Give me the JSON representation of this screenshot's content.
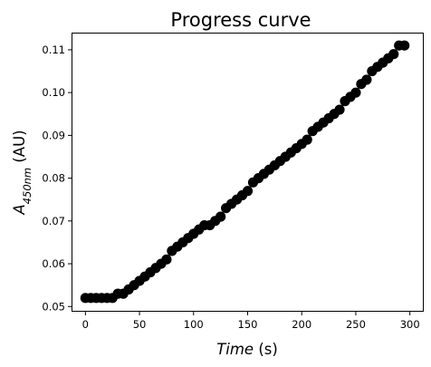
{
  "chart_data": {
    "type": "scatter",
    "title": "Progress curve",
    "xlabel": {
      "italic": "Time",
      "rest": " (s)"
    },
    "ylabel": {
      "symbol": "A",
      "subscript": "450nm",
      "rest": " (AU)"
    },
    "xlim": [
      -12,
      312
    ],
    "ylim": [
      0.049,
      0.1138
    ],
    "xticks": [
      0,
      50,
      100,
      150,
      200,
      250,
      300
    ],
    "yticks": [
      0.05,
      0.06,
      0.07,
      0.08,
      0.09,
      0.1,
      0.11
    ],
    "ytick_labels": [
      "0.05",
      "0.06",
      "0.07",
      "0.08",
      "0.09",
      "0.10",
      "0.11"
    ],
    "grid": false,
    "legend": "none",
    "marker_color": "#000000",
    "x": [
      0,
      5,
      10,
      15,
      20,
      25,
      30,
      35,
      40,
      45,
      50,
      55,
      60,
      65,
      70,
      75,
      80,
      85,
      90,
      95,
      100,
      105,
      110,
      115,
      120,
      125,
      130,
      135,
      140,
      145,
      150,
      155,
      160,
      165,
      170,
      175,
      180,
      185,
      190,
      195,
      200,
      205,
      210,
      215,
      220,
      225,
      230,
      235,
      240,
      245,
      250,
      255,
      260,
      265,
      270,
      275,
      280,
      285,
      290,
      295
    ],
    "y": [
      0.052,
      0.052,
      0.052,
      0.052,
      0.052,
      0.052,
      0.053,
      0.053,
      0.054,
      0.055,
      0.056,
      0.057,
      0.058,
      0.059,
      0.06,
      0.061,
      0.063,
      0.064,
      0.065,
      0.066,
      0.067,
      0.068,
      0.069,
      0.069,
      0.07,
      0.071,
      0.073,
      0.074,
      0.075,
      0.076,
      0.077,
      0.079,
      0.08,
      0.081,
      0.082,
      0.083,
      0.084,
      0.085,
      0.086,
      0.087,
      0.088,
      0.089,
      0.091,
      0.092,
      0.093,
      0.094,
      0.095,
      0.096,
      0.098,
      0.099,
      0.1,
      0.102,
      0.103,
      0.105,
      0.106,
      0.107,
      0.108,
      0.109,
      0.111,
      0.111
    ]
  }
}
